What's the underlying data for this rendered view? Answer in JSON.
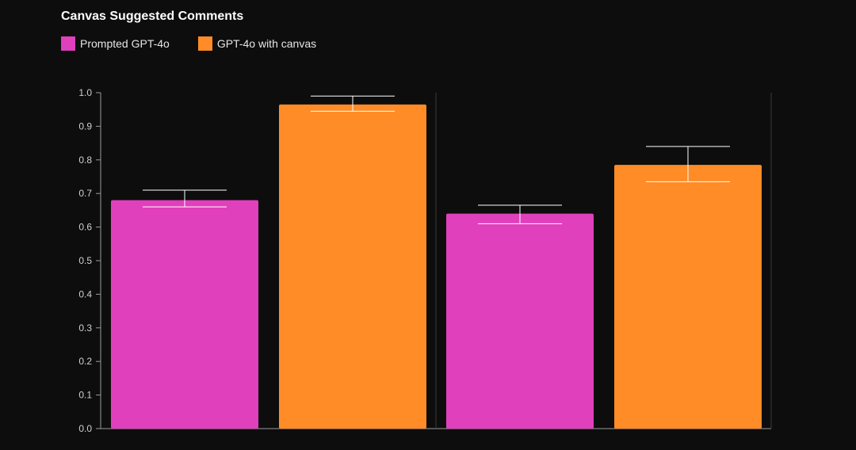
{
  "chart_data": {
    "type": "bar",
    "title": "Canvas Suggested Comments",
    "categories": [
      "",
      ""
    ],
    "series": [
      {
        "name": "Prompted GPT-4o",
        "color": "#e040bc",
        "values": [
          0.68,
          0.64
        ],
        "error_low": [
          0.66,
          0.61
        ],
        "error_high": [
          0.71,
          0.665
        ]
      },
      {
        "name": "GPT-4o with canvas",
        "color": "#ff8c26",
        "values": [
          0.965,
          0.785
        ],
        "error_low": [
          0.945,
          0.735
        ],
        "error_high": [
          0.99,
          0.84
        ]
      }
    ],
    "ylim": [
      0,
      1.0
    ],
    "yticks": [
      "0.0",
      "0.1",
      "0.2",
      "0.3",
      "0.4",
      "0.5",
      "0.6",
      "0.7",
      "0.8",
      "0.9",
      "1.0"
    ],
    "xlabel": "",
    "ylabel": "",
    "legend_position": "top-left",
    "grid": false
  }
}
